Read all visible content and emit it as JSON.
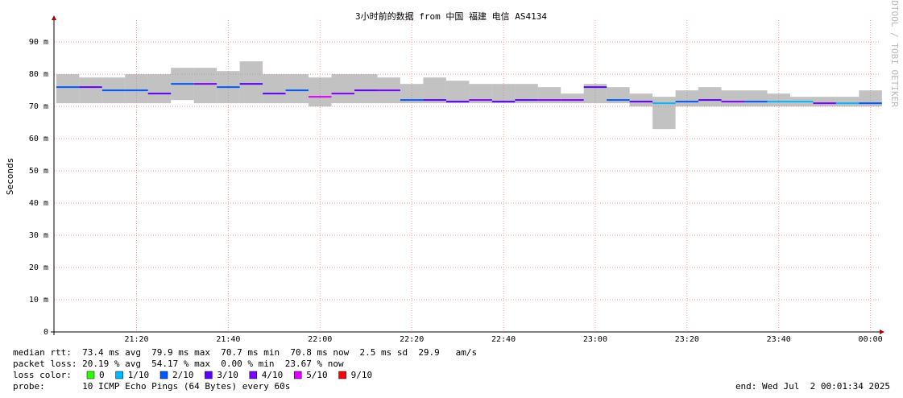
{
  "chart_data": {
    "type": "smoke",
    "title": "3小时前的数据 from 中国 福建 电信 AS4134",
    "ylabel": "Seconds",
    "watermark": "RRDTOOL / TOBI OETIKER",
    "ylim": [
      0,
      0.0968
    ],
    "yticks": [
      0,
      {
        "value": 0.01,
        "label": "10 m"
      },
      {
        "value": 0.02,
        "label": "20 m"
      },
      {
        "value": 0.03,
        "label": "30 m"
      },
      {
        "value": 0.04,
        "label": "40 m"
      },
      {
        "value": 0.05,
        "label": "50 m"
      },
      {
        "value": 0.06,
        "label": "60 m"
      },
      {
        "value": 0.07,
        "label": "70 m"
      },
      {
        "value": 0.08,
        "label": "80 m"
      },
      {
        "value": 0.09,
        "label": "90 m"
      }
    ],
    "xlim": [
      "21:02",
      "00:02"
    ],
    "xticks": [
      "21:20",
      "21:40",
      "22:00",
      "22:20",
      "22:40",
      "23:00",
      "23:20",
      "23:40",
      "00:00"
    ],
    "x": [
      "21:05",
      "21:10",
      "21:15",
      "21:20",
      "21:25",
      "21:30",
      "21:35",
      "21:40",
      "21:45",
      "21:50",
      "21:55",
      "22:00",
      "22:05",
      "22:10",
      "22:15",
      "22:20",
      "22:25",
      "22:30",
      "22:35",
      "22:40",
      "22:45",
      "22:50",
      "22:55",
      "23:00",
      "23:05",
      "23:10",
      "23:15",
      "23:20",
      "23:25",
      "23:30",
      "23:35",
      "23:40",
      "23:45",
      "23:50",
      "23:55",
      "00:00"
    ],
    "median": [
      0.076,
      0.076,
      0.075,
      0.075,
      0.074,
      0.077,
      0.077,
      0.076,
      0.077,
      0.074,
      0.075,
      0.073,
      0.074,
      0.075,
      0.075,
      0.072,
      0.072,
      0.0715,
      0.072,
      0.0715,
      0.072,
      0.072,
      0.072,
      0.076,
      0.072,
      0.0715,
      0.071,
      0.0715,
      0.072,
      0.0715,
      0.0715,
      0.0715,
      0.0715,
      0.071,
      0.071,
      0.071
    ],
    "smoke_min": [
      0.071,
      0.071,
      0.071,
      0.071,
      0.071,
      0.072,
      0.071,
      0.071,
      0.071,
      0.071,
      0.071,
      0.07,
      0.071,
      0.071,
      0.071,
      0.071,
      0.071,
      0.071,
      0.071,
      0.071,
      0.071,
      0.071,
      0.071,
      0.071,
      0.071,
      0.07,
      0.063,
      0.07,
      0.07,
      0.07,
      0.07,
      0.07,
      0.07,
      0.07,
      0.07,
      0.07
    ],
    "smoke_max": [
      0.08,
      0.079,
      0.079,
      0.08,
      0.08,
      0.082,
      0.082,
      0.081,
      0.084,
      0.08,
      0.08,
      0.079,
      0.08,
      0.08,
      0.079,
      0.077,
      0.079,
      0.078,
      0.077,
      0.077,
      0.077,
      0.076,
      0.074,
      0.077,
      0.076,
      0.074,
      0.073,
      0.075,
      0.076,
      0.075,
      0.075,
      0.074,
      0.073,
      0.073,
      0.073,
      0.075
    ],
    "loss": [
      2,
      3,
      2,
      2,
      3,
      2,
      4,
      2,
      3,
      3,
      2,
      5,
      4,
      3,
      4,
      2,
      3,
      3,
      4,
      3,
      3,
      4,
      4,
      3,
      2,
      3,
      1,
      2,
      3,
      4,
      2,
      1,
      1,
      4,
      1,
      2
    ],
    "legend_title": "loss color:",
    "legend": [
      {
        "label": "0",
        "color": "#26ff00"
      },
      {
        "label": "1/10",
        "color": "#00b8ff"
      },
      {
        "label": "2/10",
        "color": "#0059ff"
      },
      {
        "label": "3/10",
        "color": "#5e00ff"
      },
      {
        "label": "4/10",
        "color": "#7e00ff"
      },
      {
        "label": "5/10",
        "color": "#dd00ff"
      },
      {
        "label": "9/10",
        "color": "#ff0000"
      }
    ],
    "stats": [
      "median rtt:  73.4 ms avg  79.9 ms max  70.7 ms min  70.8 ms now  2.5 ms sd  29.9   am/s",
      "packet loss: 20.19 % avg  54.17 % max  0.00 % min  23.67 % now"
    ],
    "probe": "probe:       10 ICMP Echo Pings (64 Bytes) every 60s",
    "end": "end: Wed Jul  2 00:01:34 2025"
  }
}
